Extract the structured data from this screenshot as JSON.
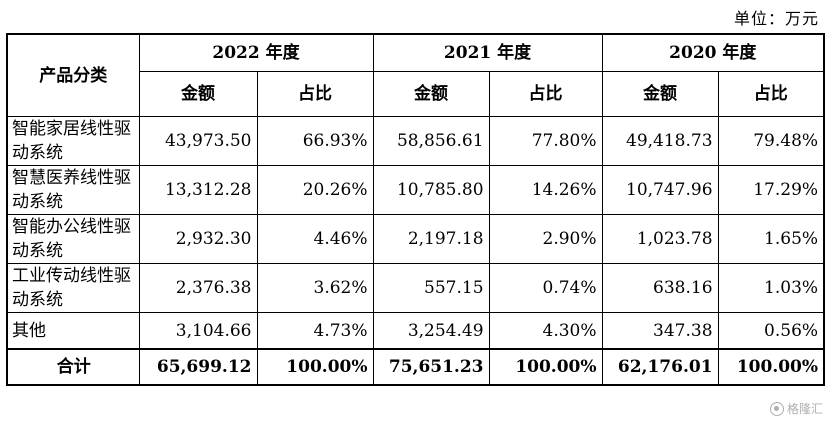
{
  "unit_label": "单位：万元",
  "table": {
    "header": {
      "category": "产品分类",
      "years": [
        "2022 年度",
        "2021 年度",
        "2020 年度"
      ],
      "amount": "金额",
      "share": "占比"
    },
    "rows": [
      {
        "name": "智能家居线性驱动系统",
        "values": [
          "43,973.50",
          "66.93%",
          "58,856.61",
          "77.80%",
          "49,418.73",
          "79.48%"
        ]
      },
      {
        "name": "智慧医养线性驱动系统",
        "values": [
          "13,312.28",
          "20.26%",
          "10,785.80",
          "14.26%",
          "10,747.96",
          "17.29%"
        ]
      },
      {
        "name": "智能办公线性驱动系统",
        "values": [
          "2,932.30",
          "4.46%",
          "2,197.18",
          "2.90%",
          "1,023.78",
          "1.65%"
        ]
      },
      {
        "name": "工业传动线性驱动系统",
        "values": [
          "2,376.38",
          "3.62%",
          "557.15",
          "0.74%",
          "638.16",
          "1.03%"
        ]
      },
      {
        "name": "其他",
        "values": [
          "3,104.66",
          "4.73%",
          "3,254.49",
          "4.30%",
          "347.38",
          "0.56%"
        ]
      }
    ],
    "total": {
      "name": "合计",
      "values": [
        "65,699.12",
        "100.00%",
        "75,651.23",
        "100.00%",
        "62,176.01",
        "100.00%"
      ]
    }
  },
  "watermark": "格隆汇"
}
